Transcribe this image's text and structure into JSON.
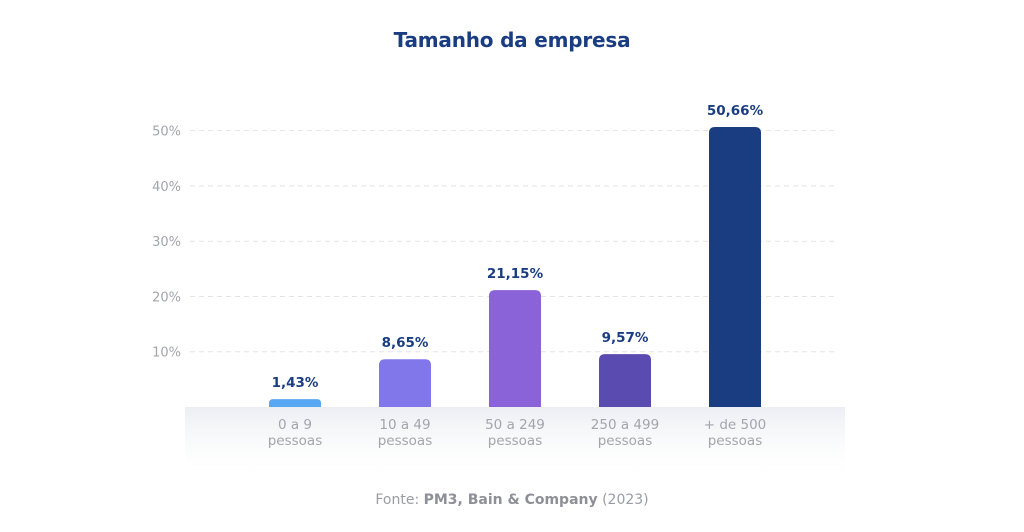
{
  "chart_data": {
    "type": "bar",
    "title": "Tamanho da empresa",
    "categories": [
      [
        "0 a 9",
        "pessoas"
      ],
      [
        "10 a 49",
        "pessoas"
      ],
      [
        "50 a 249",
        "pessoas"
      ],
      [
        "250 a 499",
        "pessoas"
      ],
      [
        "+ de 500",
        "pessoas"
      ]
    ],
    "values": [
      1.43,
      8.65,
      21.15,
      9.57,
      50.66
    ],
    "value_labels": [
      "1,43%",
      "8,65%",
      "21,15%",
      "9,57%",
      "50,66%"
    ],
    "bar_colors": [
      "#57a7f2",
      "#8277ea",
      "#8b63d8",
      "#5a4bb0",
      "#1a3d82"
    ],
    "yticks": [
      10,
      20,
      30,
      40,
      50
    ],
    "ytick_labels": [
      "10%",
      "20%",
      "30%",
      "40%",
      "50%"
    ],
    "ylim": [
      0,
      50.66
    ],
    "grid": true,
    "xlabel": "",
    "ylabel": ""
  },
  "source": {
    "prefix": "Fonte:",
    "bold": "PM3, Bain & Company",
    "suffix": "(2023)"
  },
  "colors": {
    "title": "#1a3d82",
    "value_label": "#1a3d82",
    "axis_text": "#a3a5ab",
    "grid": "#e3e4e8"
  }
}
